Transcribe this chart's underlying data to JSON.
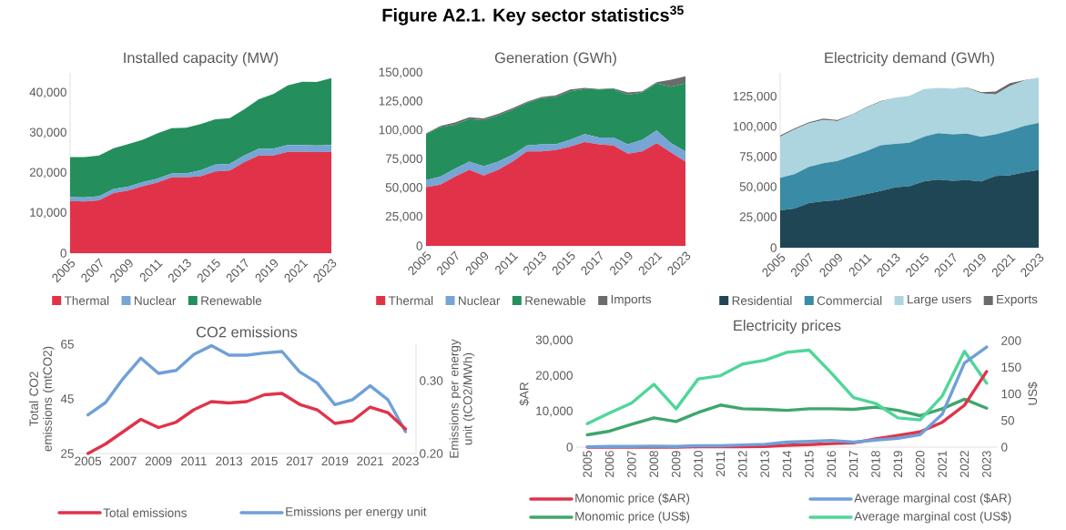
{
  "chart_data": [
    {
      "type": "other",
      "title": "Figure A2.1. Key sector statistics$^{35}$"
    },
    {
      "type": "area",
      "title": "Installed capacity (MW)",
      "stacked": true,
      "legend": "bottom",
      "categories": [
        "2005",
        null,
        "2007",
        null,
        "2009",
        null,
        "2011",
        null,
        "2013",
        null,
        "2015",
        null,
        "2017",
        null,
        "2019",
        null,
        "2021",
        null,
        "2023"
      ],
      "ylim": [
        0,
        45000
      ],
      "yticks": [
        0,
        {
          "value": 10000,
          "label": "10,000"
        },
        {
          "value": 20000,
          "label": "20,000"
        },
        {
          "value": 30000,
          "label": "30,000"
        },
        {
          "value": 40000,
          "label": "40,000"
        }
      ],
      "series": [
        {
          "name": "Thermal",
          "color": "#e0334a",
          "values": [
            13000,
            12900,
            13200,
            15000,
            15600,
            16700,
            17600,
            18900,
            18900,
            19200,
            20400,
            20600,
            22700,
            24400,
            24400,
            25300,
            25300,
            25200,
            25300
          ]
        },
        {
          "name": "Nuclear",
          "color": "#76a5d6",
          "values": [
            1000,
            1000,
            1000,
            1000,
            1000,
            1000,
            1000,
            1000,
            1000,
            1500,
            1700,
            1700,
            1700,
            1700,
            1700,
            1700,
            1700,
            1700,
            1700
          ]
        },
        {
          "name": "Renewable",
          "color": "#248f5c",
          "values": [
            10000,
            10100,
            10200,
            10200,
            10600,
            10600,
            11300,
            11300,
            11400,
            11500,
            11300,
            11400,
            11500,
            12300,
            13600,
            14900,
            15800,
            15800,
            16700
          ]
        }
      ]
    },
    {
      "type": "area",
      "title": "Generation (GWh)",
      "stacked": true,
      "legend": "bottom",
      "categories": [
        "2005",
        null,
        "2007",
        null,
        "2009",
        null,
        "2011",
        null,
        "2013",
        null,
        "2015",
        null,
        "2017",
        null,
        "2019",
        null,
        "2021",
        null,
        "2023"
      ],
      "ylim": [
        0,
        150000
      ],
      "yticks": [
        0,
        {
          "value": 25000,
          "label": "25,000"
        },
        {
          "value": 50000,
          "label": "50,000"
        },
        {
          "value": 75000,
          "label": "75,000"
        },
        {
          "value": 100000,
          "label": "100,000"
        },
        {
          "value": 125000,
          "label": "125,000"
        },
        {
          "value": 150000,
          "label": "150,000"
        }
      ],
      "series": [
        {
          "name": "Thermal",
          "color": "#e0334a",
          "values": [
            51000,
            53000,
            60000,
            66000,
            61000,
            66000,
            73000,
            82000,
            82000,
            83000,
            86000,
            90000,
            88000,
            87000,
            80000,
            82000,
            89000,
            81000,
            73000
          ]
        },
        {
          "name": "Nuclear",
          "color": "#76a5d6",
          "values": [
            6000,
            7000,
            7000,
            7000,
            8000,
            7000,
            6000,
            5000,
            6000,
            5000,
            6000,
            7000,
            6000,
            7000,
            8000,
            10000,
            11000,
            8000,
            9000
          ]
        },
        {
          "name": "Renewable",
          "color": "#248f5c",
          "values": [
            40000,
            43000,
            38000,
            37000,
            40000,
            40000,
            39000,
            37000,
            40000,
            41000,
            42000,
            39000,
            41500,
            42000,
            43000,
            41000,
            41000,
            49000,
            59000
          ]
        },
        {
          "name": "Imports",
          "color": "#6b6b6b",
          "values": [
            500,
            1000,
            2000,
            1500,
            1500,
            1500,
            1500,
            1000,
            1000,
            1500,
            1500,
            1000,
            500,
            500,
            2000,
            1000,
            1000,
            6000,
            6000
          ]
        }
      ]
    },
    {
      "type": "area",
      "title": "Electricity demand (GWh)",
      "stacked": true,
      "legend": "bottom",
      "categories": [
        "2005",
        null,
        "2007",
        null,
        "2009",
        null,
        "2011",
        null,
        "2013",
        null,
        "2015",
        null,
        "2017",
        null,
        "2019",
        null,
        "2021",
        null,
        "2023"
      ],
      "ylim": [
        0,
        145000
      ],
      "yticks": [
        0,
        {
          "value": 25000,
          "label": "25,000"
        },
        {
          "value": 50000,
          "label": "50,000"
        },
        {
          "value": 75000,
          "label": "75,000"
        },
        {
          "value": 100000,
          "label": "100,000"
        },
        {
          "value": 125000,
          "label": "125,000"
        }
      ],
      "series": [
        {
          "name": "Residential",
          "color": "#1f4655",
          "values": [
            31000,
            32500,
            37000,
            38500,
            39500,
            42000,
            44500,
            47000,
            50000,
            51000,
            55000,
            56500,
            55500,
            56000,
            55000,
            59500,
            60000,
            62500,
            64500
          ]
        },
        {
          "name": "Commercial",
          "color": "#3a8ba5",
          "values": [
            27000,
            28500,
            30000,
            31500,
            32500,
            34000,
            35500,
            38000,
            36000,
            36000,
            37000,
            38500,
            38500,
            38500,
            37000,
            34500,
            37000,
            38500,
            39000
          ]
        },
        {
          "name": "Large users",
          "color": "#add5e0",
          "values": [
            34000,
            37000,
            36000,
            36000,
            33000,
            34000,
            36000,
            36000,
            38500,
            39000,
            39500,
            37500,
            38000,
            38000,
            36000,
            33000,
            37000,
            37500,
            37500
          ]
        },
        {
          "name": "Exports",
          "color": "#6b6b6b",
          "values": [
            1000,
            1000,
            1000,
            1000,
            1000,
            500,
            500,
            500,
            0,
            0,
            0,
            0,
            0,
            500,
            1000,
            2500,
            2500,
            500,
            0
          ]
        }
      ]
    },
    {
      "type": "line",
      "title": "CO2 emissions",
      "legend": "bottom",
      "ylabel": "Total CO2 emissions (mtCO2)",
      "y2label": "Emissions per energy unit (tCO2/MWh)",
      "categories": [
        "2005",
        null,
        "2007",
        null,
        "2009",
        null,
        "2011",
        null,
        "2013",
        null,
        "2015",
        null,
        "2017",
        null,
        "2019",
        null,
        "2021",
        null,
        "2023"
      ],
      "ylim": [
        25,
        65
      ],
      "yticks": [
        25,
        45,
        65
      ],
      "y2lim": [
        0.2,
        0.35
      ],
      "y2ticks": [
        {
          "value": 0.2,
          "label": "0.20"
        },
        {
          "value": 0.3,
          "label": "0.30"
        }
      ],
      "series": [
        {
          "name": "Total emissions",
          "color": "#e0334a",
          "values": [
            25,
            28.5,
            33,
            37.5,
            34.5,
            36.5,
            41,
            44,
            43.5,
            44,
            46.5,
            47,
            43,
            41,
            36,
            37,
            42,
            40,
            34
          ]
        },
        {
          "name": "Emissions per energy unit",
          "color": "#6fa0d8",
          "axis": "y2",
          "values": [
            0.253,
            0.27,
            0.303,
            0.331,
            0.31,
            0.314,
            0.336,
            0.348,
            0.335,
            0.335,
            0.338,
            0.34,
            0.312,
            0.297,
            0.267,
            0.274,
            0.293,
            0.274,
            0.23
          ]
        }
      ]
    },
    {
      "type": "line",
      "title": "Electricity prices",
      "legend": "bottom",
      "ylabel": "$AR",
      "y2label": "US$",
      "categories": [
        "2005",
        "2006",
        "2007",
        "2008",
        "2009",
        "2010",
        "2011",
        "2012",
        "2013",
        "2014",
        "2015",
        "2016",
        "2017",
        "2018",
        "2019",
        "2020",
        "2021",
        "2022",
        "2023"
      ],
      "ylim": [
        0,
        30000
      ],
      "yticks": [
        0,
        {
          "value": 10000,
          "label": "10,000"
        },
        {
          "value": 20000,
          "label": "20,000"
        },
        {
          "value": 30000,
          "label": "30,000"
        }
      ],
      "y2lim": [
        0,
        200
      ],
      "y2ticks": [
        0,
        50,
        100,
        150,
        200
      ],
      "series": [
        {
          "name": "Monomic price ($AR)",
          "color": "#e0334a",
          "values": [
            0,
            0,
            0,
            0,
            0,
            100,
            100,
            100,
            200,
            500,
            700,
            1000,
            1200,
            2300,
            3300,
            4300,
            7000,
            11800,
            21300
          ]
        },
        {
          "name": "Average marginal cost ($AR)",
          "color": "#6fa0d8",
          "values": [
            100,
            200,
            200,
            300,
            200,
            400,
            400,
            600,
            800,
            1400,
            1600,
            1900,
            1400,
            2000,
            2500,
            3500,
            9300,
            23700,
            28200
          ]
        },
        {
          "name": "Monomic price (US$)",
          "color": "#3fa66e",
          "axis": "y2",
          "values": [
            23,
            30,
            43,
            55,
            48,
            65,
            79,
            72,
            71,
            69,
            72,
            72,
            71,
            75,
            69,
            59,
            72,
            90,
            73
          ]
        },
        {
          "name": "Average marginal cost (US$)",
          "color": "#4fd69a",
          "axis": "y2",
          "values": [
            44,
            64,
            83,
            118,
            72,
            128,
            134,
            156,
            163,
            178,
            182,
            139,
            93,
            82,
            55,
            51,
            96,
            180,
            120
          ]
        }
      ]
    }
  ]
}
